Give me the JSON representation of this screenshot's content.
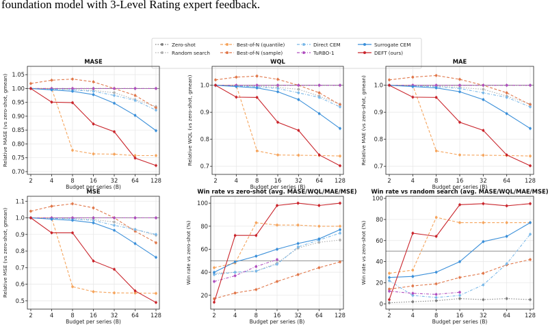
{
  "caption": "foundation model with 3-Level Rating expert feedback.",
  "legend": [
    {
      "name": "Zero-shot",
      "color": "#7f7f7f",
      "dash": "dot",
      "marker": "circle"
    },
    {
      "name": "Random search",
      "color": "#b0b0b0",
      "dash": "dot",
      "marker": "circle"
    },
    {
      "name": "Best-of-N (quantile)",
      "color": "#f5a45c",
      "dash": "dash",
      "marker": "circle"
    },
    {
      "name": "Best-of-N (sample)",
      "color": "#e0774a",
      "dash": "dash",
      "marker": "circle"
    },
    {
      "name": "Direct CEM",
      "color": "#7ab8e8",
      "dash": "dashdot",
      "marker": "circle"
    },
    {
      "name": "TuRBO-1",
      "color": "#b04fbf",
      "dash": "dashdot",
      "marker": "circle"
    },
    {
      "name": "Surrogate CEM",
      "color": "#3a8fd9",
      "dash": "solid",
      "marker": "circle"
    },
    {
      "name": "DEFT (ours)",
      "color": "#c9242b",
      "dash": "solid",
      "marker": "circle"
    }
  ],
  "chart_data": [
    {
      "type": "line",
      "title": "MASE",
      "xlabel": "Budget per series (B)",
      "ylabel": "Relative MASE (vs zero-shot, gmean)",
      "x": [
        2,
        4,
        8,
        16,
        32,
        64,
        128
      ],
      "xscale": "log2",
      "ylim": [
        0.69,
        1.08
      ],
      "yticks": [
        0.7,
        0.75,
        0.8,
        0.85,
        0.9,
        0.95,
        1.0,
        1.05
      ],
      "ytick_decimals": 2,
      "hline": 1.0,
      "grid": true,
      "series": [
        {
          "name": "Zero-shot",
          "values": [
            1.0,
            1.0,
            1.0,
            1.0,
            1.0,
            1.0,
            1.0
          ]
        },
        {
          "name": "Random search",
          "values": [
            1.0,
            0.998,
            0.996,
            0.993,
            0.985,
            0.96,
            0.935
          ]
        },
        {
          "name": "Best-of-N (quantile)",
          "values": [
            1.0,
            1.0,
            0.777,
            0.764,
            0.763,
            0.758,
            0.758
          ]
        },
        {
          "name": "Best-of-N (sample)",
          "values": [
            1.018,
            1.03,
            1.034,
            1.024,
            1.0,
            0.975,
            0.93
          ]
        },
        {
          "name": "Direct CEM",
          "values": [
            1.0,
            0.998,
            0.995,
            0.99,
            0.975,
            0.957,
            0.922
          ]
        },
        {
          "name": "TuRBO-1",
          "values": [
            1.0,
            1.0,
            1.0,
            1.0,
            1.0,
            1.0,
            1.0
          ]
        },
        {
          "name": "Surrogate CEM",
          "values": [
            1.0,
            0.995,
            0.99,
            0.978,
            0.947,
            0.903,
            0.848
          ]
        },
        {
          "name": "DEFT (ours)",
          "values": [
            1.0,
            0.951,
            0.949,
            0.872,
            0.844,
            0.749,
            0.722
          ]
        }
      ]
    },
    {
      "type": "line",
      "title": "WQL",
      "xlabel": "Budget per series (B)",
      "ylabel": "Relative WQL (vs zero-shot, gmean)",
      "x": [
        2,
        4,
        8,
        16,
        32,
        64,
        128
      ],
      "xscale": "log2",
      "ylim": [
        0.67,
        1.07
      ],
      "yticks": [
        0.7,
        0.8,
        0.9,
        1.0
      ],
      "ytick_decimals": 1,
      "hline": 1.0,
      "grid": true,
      "series": [
        {
          "name": "Zero-shot",
          "values": [
            1.0,
            1.0,
            1.0,
            1.0,
            1.0,
            1.0,
            1.0
          ]
        },
        {
          "name": "Random search",
          "values": [
            1.0,
            0.998,
            0.996,
            0.992,
            0.985,
            0.96,
            0.93
          ]
        },
        {
          "name": "Best-of-N (quantile)",
          "values": [
            1.0,
            1.0,
            0.757,
            0.742,
            0.741,
            0.74,
            0.738
          ]
        },
        {
          "name": "Best-of-N (sample)",
          "values": [
            1.02,
            1.03,
            1.034,
            1.022,
            1.0,
            0.972,
            0.928
          ]
        },
        {
          "name": "Direct CEM",
          "values": [
            1.0,
            0.997,
            0.994,
            0.988,
            0.972,
            0.955,
            0.92
          ]
        },
        {
          "name": "TuRBO-1",
          "values": [
            1.0,
            1.0,
            1.0,
            1.0,
            1.0,
            1.0,
            1.0
          ]
        },
        {
          "name": "Surrogate CEM",
          "values": [
            1.0,
            0.995,
            0.99,
            0.976,
            0.947,
            0.895,
            0.84
          ]
        },
        {
          "name": "DEFT (ours)",
          "values": [
            1.0,
            0.956,
            0.955,
            0.863,
            0.833,
            0.742,
            0.702
          ]
        }
      ]
    },
    {
      "type": "line",
      "title": "MAE",
      "xlabel": "Budget per series (B)",
      "ylabel": "Relative MAE (vs zero-shot, gmean)",
      "x": [
        2,
        4,
        8,
        16,
        32,
        64,
        128
      ],
      "xscale": "log2",
      "ylim": [
        0.67,
        1.07
      ],
      "yticks": [
        0.7,
        0.8,
        0.9,
        1.0
      ],
      "ytick_decimals": 1,
      "hline": 1.0,
      "grid": true,
      "series": [
        {
          "name": "Zero-shot",
          "values": [
            1.0,
            1.0,
            1.0,
            1.0,
            1.0,
            1.0,
            1.0
          ]
        },
        {
          "name": "Random search",
          "values": [
            1.0,
            0.998,
            0.996,
            0.992,
            0.985,
            0.96,
            0.93
          ]
        },
        {
          "name": "Best-of-N (quantile)",
          "values": [
            1.0,
            1.0,
            0.757,
            0.742,
            0.741,
            0.74,
            0.738
          ]
        },
        {
          "name": "Best-of-N (sample)",
          "values": [
            1.02,
            1.03,
            1.036,
            1.022,
            1.0,
            0.972,
            0.928
          ]
        },
        {
          "name": "Direct CEM",
          "values": [
            1.0,
            0.997,
            0.994,
            0.988,
            0.972,
            0.955,
            0.92
          ]
        },
        {
          "name": "TuRBO-1",
          "values": [
            1.0,
            1.0,
            1.0,
            1.0,
            1.0,
            1.0,
            1.0
          ]
        },
        {
          "name": "Surrogate CEM",
          "values": [
            1.0,
            0.995,
            0.99,
            0.976,
            0.947,
            0.895,
            0.84
          ]
        },
        {
          "name": "DEFT (ours)",
          "values": [
            1.0,
            0.956,
            0.955,
            0.863,
            0.833,
            0.742,
            0.702
          ]
        }
      ]
    },
    {
      "type": "line",
      "title": "MSE",
      "xlabel": "Budget per series (B)",
      "ylabel": "Relative MSE (vs zero-shot, gmean)",
      "x": [
        2,
        4,
        8,
        16,
        32,
        64,
        128
      ],
      "xscale": "log2",
      "ylim": [
        0.45,
        1.13
      ],
      "yticks": [
        0.5,
        0.6,
        0.7,
        0.8,
        0.9,
        1.0,
        1.1
      ],
      "ytick_decimals": 1,
      "hline": 1.0,
      "grid": true,
      "series": [
        {
          "name": "Zero-shot",
          "values": [
            1.0,
            1.0,
            1.0,
            1.0,
            1.0,
            1.0,
            1.0
          ]
        },
        {
          "name": "Random search",
          "values": [
            1.0,
            0.998,
            0.995,
            0.99,
            0.975,
            0.93,
            0.895
          ]
        },
        {
          "name": "Best-of-N (quantile)",
          "values": [
            1.0,
            1.0,
            0.585,
            0.555,
            0.548,
            0.547,
            0.545
          ]
        },
        {
          "name": "Best-of-N (sample)",
          "values": [
            1.04,
            1.07,
            1.085,
            1.06,
            1.0,
            0.92,
            0.85
          ]
        },
        {
          "name": "Direct CEM",
          "values": [
            1.0,
            0.997,
            0.993,
            0.985,
            0.955,
            0.93,
            0.9
          ]
        },
        {
          "name": "TuRBO-1",
          "values": [
            1.0,
            1.0,
            1.0,
            1.0,
            1.0,
            1.0,
            1.0
          ]
        },
        {
          "name": "Surrogate CEM",
          "values": [
            1.0,
            0.992,
            0.985,
            0.97,
            0.925,
            0.845,
            0.762
          ]
        },
        {
          "name": "DEFT (ours)",
          "values": [
            1.0,
            0.91,
            0.91,
            0.74,
            0.69,
            0.56,
            0.49
          ]
        }
      ]
    },
    {
      "type": "line",
      "title": "Win rate vs zero-shot (avg. MASE/WQL/MAE/MSE)",
      "xlabel": "Budget per series (B)",
      "ylabel": "Win rate vs zero-shot (%)",
      "x": [
        2,
        4,
        8,
        16,
        32,
        64,
        128
      ],
      "xscale": "log2",
      "ylim": [
        8,
        106
      ],
      "yticks": [
        20,
        40,
        60,
        80,
        100
      ],
      "ytick_decimals": 0,
      "hline": 50,
      "grid": true,
      "series": [
        {
          "name": "Random search",
          "values": [
            39,
            40,
            41,
            48,
            61,
            66,
            68
          ]
        },
        {
          "name": "Best-of-N (quantile)",
          "values": [
            44,
            48,
            83,
            81,
            81,
            80,
            80
          ]
        },
        {
          "name": "Best-of-N (sample)",
          "values": [
            17,
            22,
            25,
            32,
            38,
            44,
            49
          ]
        },
        {
          "name": "Direct CEM",
          "values": [
            38,
            40,
            41,
            47,
            62,
            68,
            74
          ]
        },
        {
          "name": "TuRBO-1",
          "values": [
            32,
            37,
            45,
            51,
            null,
            null,
            null
          ]
        },
        {
          "name": "Surrogate CEM",
          "values": [
            40,
            49,
            54,
            60,
            65,
            69,
            77
          ]
        },
        {
          "name": "DEFT (ours)",
          "values": [
            14,
            72,
            72,
            98,
            100,
            98,
            100
          ]
        }
      ]
    },
    {
      "type": "line",
      "title": "Win rate vs random search (avg. MASE/WQL/MAE/MSE)",
      "xlabel": "Budget per series (B)",
      "ylabel": "Win rate vs zero-shot (%)",
      "x": [
        2,
        4,
        8,
        16,
        32,
        64,
        128
      ],
      "xscale": "log2",
      "ylim": [
        -5,
        102
      ],
      "yticks": [
        0,
        20,
        40,
        60,
        80,
        100
      ],
      "ytick_decimals": 0,
      "hline": 50,
      "grid": true,
      "series": [
        {
          "name": "Zero-shot",
          "values": [
            1,
            2,
            3,
            5,
            4,
            5,
            4
          ]
        },
        {
          "name": "Best-of-N (quantile)",
          "values": [
            29,
            32,
            82,
            77,
            77,
            77,
            77
          ]
        },
        {
          "name": "Best-of-N (sample)",
          "values": [
            14,
            17,
            19,
            25,
            29,
            37,
            42
          ]
        },
        {
          "name": "Direct CEM",
          "values": [
            22,
            8,
            6,
            8,
            18,
            38,
            66
          ]
        },
        {
          "name": "TuRBO-1",
          "values": [
            12,
            10,
            9,
            11,
            null,
            null,
            null
          ]
        },
        {
          "name": "Surrogate CEM",
          "values": [
            25,
            26,
            30,
            40,
            59,
            64,
            77
          ]
        },
        {
          "name": "DEFT (ours)",
          "values": [
            4,
            67,
            64,
            94,
            95,
            93,
            95
          ]
        }
      ]
    }
  ]
}
